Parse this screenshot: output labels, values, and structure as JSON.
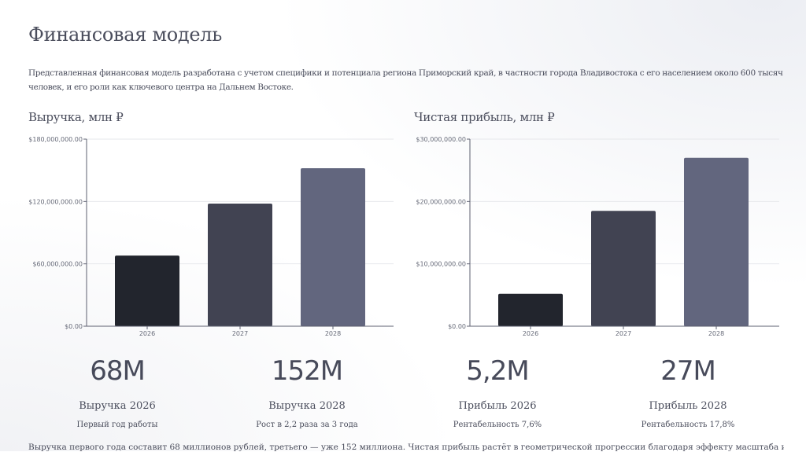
{
  "title": "Финансовая модель",
  "intro": "Представленная финансовая модель разработана с учетом специфики и потенциала региона Приморский край, в частности города Владивостока с его населением около 600 тысяч человек, и его роли как ключевого центра на Дальнем Востоке.",
  "chart_data": [
    {
      "type": "bar",
      "title": "Выручка, млн ₽",
      "categories": [
        "2026",
        "2027",
        "2028"
      ],
      "values": [
        68000000,
        118000000,
        152000000
      ],
      "colors": [
        "#22252d",
        "#414352",
        "#62667e"
      ],
      "ylim": [
        0,
        180000000
      ],
      "yticks": [
        0,
        60000000,
        120000000,
        180000000
      ],
      "ytick_labels": [
        "$0.00",
        "$60,000,000.00",
        "$120,000,000.00",
        "$180,000,000.00"
      ],
      "xlabel": "",
      "ylabel": ""
    },
    {
      "type": "bar",
      "title": "Чистая прибыль, млн ₽",
      "categories": [
        "2026",
        "2027",
        "2028"
      ],
      "values": [
        5200000,
        18500000,
        27000000
      ],
      "colors": [
        "#22252d",
        "#414352",
        "#62667e"
      ],
      "ylim": [
        0,
        30000000
      ],
      "yticks": [
        0,
        10000000,
        20000000,
        30000000
      ],
      "ytick_labels": [
        "$0.00",
        "$10,000,000.00",
        "$20,000,000.00",
        "$30,000,000.00"
      ],
      "xlabel": "",
      "ylabel": ""
    }
  ],
  "metrics": [
    {
      "value": "68M",
      "label": "Выручка 2026",
      "sub": "Первый год работы"
    },
    {
      "value": "152M",
      "label": "Выручка 2028",
      "sub": "Рост в 2,2 раза за 3 года"
    },
    {
      "value": "5,2M",
      "label": "Прибыль 2026",
      "sub": "Рентабельность 7,6%"
    },
    {
      "value": "27M",
      "label": "Прибыль 2028",
      "sub": "Рентабельность 17,8%"
    }
  ],
  "footer": "Выручка первого года составит 68 миллионов рублей, третьего — уже 152 миллиона. Чистая прибыль растёт в геометрической прогрессии благодаря эффекту масштаба и отсутствию затрат на аренду"
}
